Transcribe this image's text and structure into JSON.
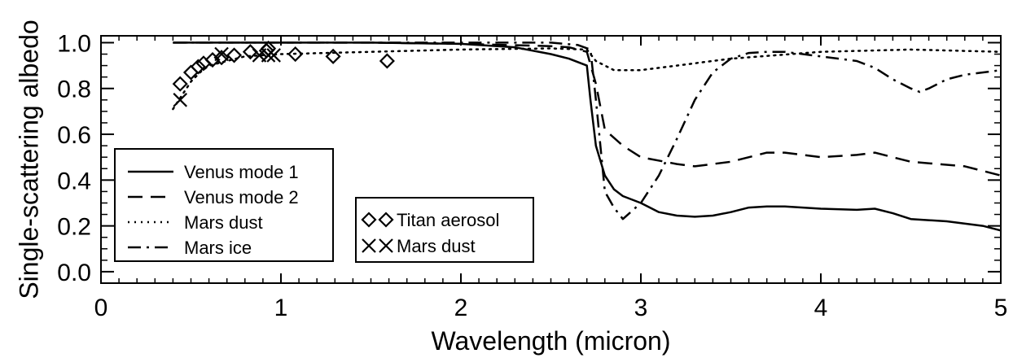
{
  "chart_data": {
    "type": "line",
    "title": "",
    "xlabel": "Wavelength (micron)",
    "ylabel": "Single-scattering albedo",
    "xlim": [
      0,
      5
    ],
    "ylim": [
      -0.05,
      1.03
    ],
    "x_ticks": [
      0,
      1,
      2,
      3,
      4,
      5
    ],
    "x_tick_labels": [
      "0",
      "1",
      "2",
      "3",
      "4",
      "5"
    ],
    "y_ticks": [
      0.0,
      0.2,
      0.4,
      0.6,
      0.8,
      1.0
    ],
    "y_tick_labels": [
      "0.0",
      "0.2",
      "0.4",
      "0.6",
      "0.8",
      "1.0"
    ],
    "grid": false,
    "series": [
      {
        "name": "Venus mode 1",
        "style": "solid",
        "x": [
          0.4,
          1.0,
          1.5,
          2.0,
          2.3,
          2.5,
          2.6,
          2.7,
          2.72,
          2.75,
          2.8,
          2.85,
          2.9,
          3.0,
          3.1,
          3.2,
          3.3,
          3.4,
          3.5,
          3.6,
          3.7,
          3.8,
          4.0,
          4.2,
          4.3,
          4.4,
          4.5,
          4.7,
          4.9,
          5.0
        ],
        "y": [
          1.0,
          1.0,
          1.0,
          0.995,
          0.98,
          0.95,
          0.93,
          0.9,
          0.75,
          0.55,
          0.42,
          0.36,
          0.33,
          0.3,
          0.26,
          0.245,
          0.24,
          0.245,
          0.26,
          0.28,
          0.285,
          0.285,
          0.275,
          0.27,
          0.275,
          0.255,
          0.23,
          0.22,
          0.2,
          0.18
        ]
      },
      {
        "name": "Venus mode 2",
        "style": "dashed",
        "x": [
          0.4,
          1.0,
          1.5,
          2.0,
          2.5,
          2.6,
          2.7,
          2.75,
          2.8,
          2.9,
          3.0,
          3.2,
          3.3,
          3.5,
          3.7,
          3.8,
          4.0,
          4.2,
          4.3,
          4.5,
          4.8,
          5.0
        ],
        "y": [
          1.0,
          1.0,
          1.0,
          0.995,
          0.985,
          0.98,
          0.96,
          0.82,
          0.62,
          0.55,
          0.5,
          0.47,
          0.46,
          0.48,
          0.52,
          0.52,
          0.5,
          0.51,
          0.52,
          0.48,
          0.46,
          0.42
        ]
      },
      {
        "name": "Mars dust",
        "style": "dotted",
        "x": [
          0.4,
          0.45,
          0.5,
          0.55,
          0.6,
          0.7,
          0.8,
          1.0,
          1.5,
          2.0,
          2.5,
          2.7,
          2.75,
          2.85,
          3.0,
          3.2,
          3.5,
          4.0,
          4.5,
          5.0
        ],
        "y": [
          0.71,
          0.77,
          0.83,
          0.87,
          0.9,
          0.92,
          0.94,
          0.95,
          0.96,
          0.97,
          0.975,
          0.97,
          0.92,
          0.88,
          0.88,
          0.9,
          0.93,
          0.96,
          0.97,
          0.96
        ]
      },
      {
        "name": "Mars ice",
        "style": "dashdot",
        "x": [
          0.4,
          1.0,
          2.0,
          2.5,
          2.65,
          2.72,
          2.75,
          2.8,
          2.85,
          2.9,
          3.0,
          3.1,
          3.2,
          3.3,
          3.4,
          3.5,
          3.6,
          3.7,
          3.8,
          4.0,
          4.2,
          4.3,
          4.4,
          4.5,
          4.55,
          4.6,
          4.7,
          4.8,
          5.0
        ],
        "y": [
          1.0,
          1.0,
          1.0,
          1.0,
          0.99,
          0.97,
          0.75,
          0.35,
          0.28,
          0.23,
          0.3,
          0.42,
          0.58,
          0.75,
          0.87,
          0.93,
          0.955,
          0.96,
          0.96,
          0.94,
          0.92,
          0.89,
          0.84,
          0.8,
          0.785,
          0.8,
          0.84,
          0.86,
          0.88
        ]
      }
    ],
    "markers": [
      {
        "name": "Titan aerosol",
        "symbol": "diamond",
        "x": [
          0.44,
          0.5,
          0.54,
          0.57,
          0.62,
          0.67,
          0.74,
          0.83,
          0.92,
          0.93,
          1.08,
          1.29,
          1.59
        ],
        "y": [
          0.82,
          0.87,
          0.895,
          0.91,
          0.925,
          0.935,
          0.945,
          0.96,
          0.965,
          0.975,
          0.95,
          0.94,
          0.92
        ]
      },
      {
        "name": "Mars dust",
        "symbol": "cross",
        "x": [
          0.44,
          0.67,
          0.88,
          0.93,
          0.96
        ],
        "y": [
          0.75,
          0.95,
          0.945,
          0.945,
          0.945
        ]
      }
    ],
    "legend_lines": {
      "placement": "lower-left",
      "entries": [
        "Venus mode 1",
        "Venus mode 2",
        "Mars dust",
        "Mars ice"
      ]
    },
    "legend_markers": {
      "placement": "lower-center-left",
      "entries": [
        "Titan aerosol",
        "Mars dust"
      ]
    }
  }
}
